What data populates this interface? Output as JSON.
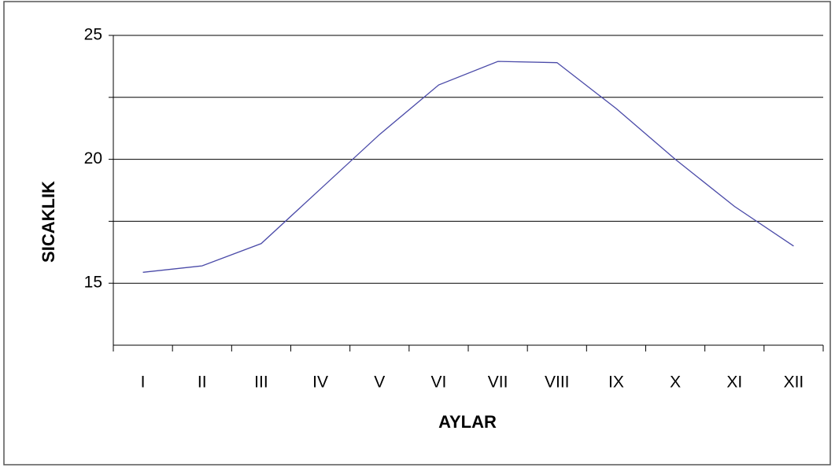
{
  "chart_data": {
    "type": "line",
    "xlabel": "AYLAR",
    "ylabel": "SICAKLIK",
    "categories": [
      "I",
      "II",
      "III",
      "IV",
      "V",
      "VI",
      "VII",
      "VIII",
      "IX",
      "X",
      "XI",
      "XII"
    ],
    "series": [
      {
        "color": "#4a4aa8",
        "values": [
          15.44,
          15.7,
          16.6,
          18.8,
          21.0,
          23.0,
          23.95,
          23.9,
          22.05,
          20.0,
          18.1,
          16.5
        ]
      }
    ],
    "ylim": [
      12.5,
      25
    ],
    "yticks": [
      15,
      20,
      25
    ],
    "yminor": [
      17.5,
      22.5
    ],
    "grid": true
  }
}
